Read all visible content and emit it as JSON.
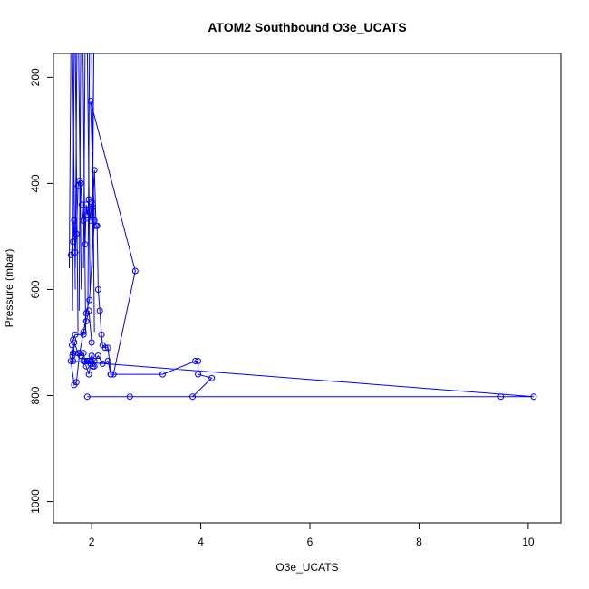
{
  "chart_data": {
    "type": "scatter",
    "title": "ATOM2 Southbound O3e_UCATS",
    "xlabel": "O3e_UCATS",
    "ylabel": "Pressure (mbar)",
    "xlim": [
      1.3,
      10.6
    ],
    "ylim": [
      1040,
      155
    ],
    "y_reversed": true,
    "x_ticks": [
      2,
      4,
      6,
      8,
      10
    ],
    "y_ticks": [
      200,
      400,
      600,
      800,
      1000
    ],
    "grid": false,
    "legend": "none",
    "colors": {
      "series": "#0000ff",
      "axes": "#000000"
    },
    "series": [
      {
        "type": "line+points",
        "x": [
          1.62,
          1.66,
          1.68,
          1.7,
          1.72,
          1.75,
          1.78,
          1.8,
          1.82,
          1.85,
          1.88,
          1.9,
          1.92,
          1.95,
          1.98,
          2.0,
          2.02,
          2.05,
          2.08,
          2.1,
          2.12,
          2.15,
          2.18,
          2.2,
          2.25,
          2.3,
          2.35,
          2.4,
          2.8,
          1.98,
          2.05,
          1.96,
          1.9,
          1.85,
          1.7,
          1.66,
          1.64,
          1.66,
          1.65,
          1.66,
          1.68,
          1.75,
          1.8,
          1.85,
          1.88,
          1.92,
          1.95,
          2.0,
          2.02,
          2.05,
          1.98,
          1.92,
          2.05,
          2.12,
          2.2,
          2.3,
          2.35,
          3.3,
          3.9,
          3.95,
          3.95,
          4.2,
          3.85,
          2.7,
          1.92,
          9.5,
          10.1,
          1.62,
          1.68,
          1.72,
          1.78,
          1.85,
          1.9,
          1.95,
          2.0,
          2.02,
          1.99,
          1.95,
          1.9,
          1.85
        ],
        "y": [
          535,
          510,
          470,
          530,
          495,
          405,
          395,
          400,
          440,
          470,
          515,
          440,
          460,
          430,
          470,
          435,
          445,
          375,
          480,
          480,
          600,
          640,
          685,
          705,
          710,
          710,
          760,
          760,
          565,
          245,
          470,
          620,
          645,
          685,
          685,
          695,
          705,
          720,
          725,
          735,
          700,
          720,
          725,
          720,
          735,
          735,
          735,
          725,
          745,
          745,
          740,
          735,
          735,
          725,
          740,
          735,
          760,
          760,
          735,
          735,
          760,
          767,
          802,
          802,
          802,
          802,
          802,
          735,
          780,
          775,
          720,
          680,
          660,
          640,
          700,
          745,
          735,
          760,
          745,
          735
        ]
      }
    ]
  }
}
